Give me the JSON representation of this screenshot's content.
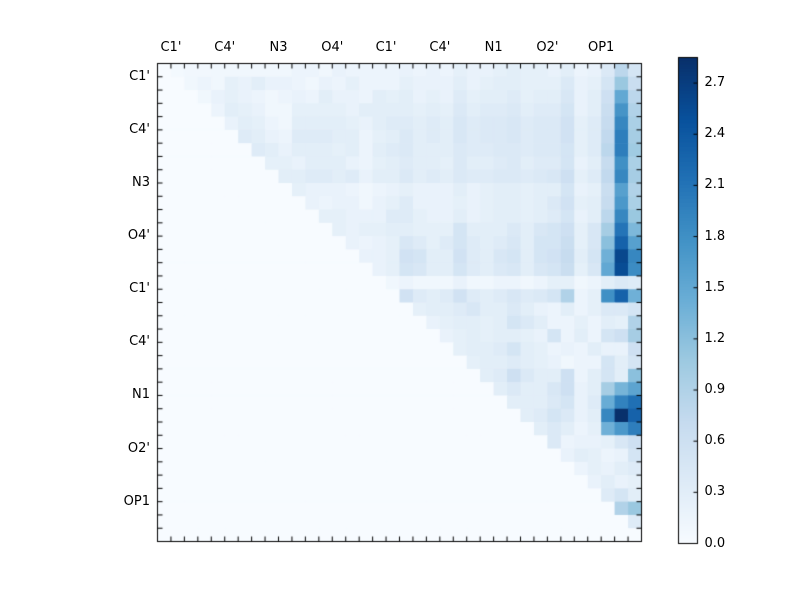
{
  "figure": {
    "background": "#ffffff",
    "frame_color": "#000000"
  },
  "chart_data": {
    "type": "heatmap",
    "title": "",
    "xlabel": "",
    "ylabel": "",
    "x_tick_labels": [
      "C1'",
      "C4'",
      "N3",
      "O4'",
      "C1'",
      "C4'",
      "N1",
      "O2'",
      "OP1"
    ],
    "y_tick_labels": [
      "C1'",
      "C4'",
      "N3",
      "O4'",
      "C1'",
      "C4'",
      "N1",
      "O2'",
      "OP1"
    ],
    "label_cell_positions": [
      1,
      5,
      9,
      13,
      17,
      21,
      25,
      29,
      33
    ],
    "n_cells": 36,
    "grid": false,
    "matrix_shape": "upper-triangular",
    "colormap": "Blues",
    "vmin": 0.0,
    "vmax": 2.85,
    "colorbar": {
      "position": "right",
      "tick_values": [
        0.0,
        0.3,
        0.6,
        0.9,
        1.2,
        1.5,
        1.8,
        2.1,
        2.4,
        2.7
      ],
      "tick_labels": [
        "0.0",
        "0.3",
        "0.6",
        "0.9",
        "1.2",
        "1.5",
        "1.8",
        "2.1",
        "2.4",
        "2.7"
      ]
    },
    "matrix": [
      [
        0,
        0.05,
        0.08,
        0.08,
        0.1,
        0.1,
        0.1,
        0.1,
        0.1,
        0.1,
        0.15,
        0.15,
        0.1,
        0.2,
        0.15,
        0.15,
        0.15,
        0.15,
        0.2,
        0.15,
        0.2,
        0.15,
        0.25,
        0.2,
        0.2,
        0.25,
        0.3,
        0.25,
        0.25,
        0.2,
        0.3,
        0.15,
        0.2,
        0.4,
        0.8,
        0.5
      ],
      [
        0,
        0,
        0.1,
        0.15,
        0.1,
        0.25,
        0.2,
        0.3,
        0.2,
        0.2,
        0.15,
        0.1,
        0.2,
        0.15,
        0.25,
        0.15,
        0.15,
        0.15,
        0.25,
        0.2,
        0.2,
        0.2,
        0.3,
        0.2,
        0.25,
        0.3,
        0.3,
        0.25,
        0.25,
        0.25,
        0.4,
        0.2,
        0.25,
        0.5,
        1.1,
        0.65
      ],
      [
        0,
        0,
        0,
        0.1,
        0.2,
        0.25,
        0.2,
        0.15,
        0.1,
        0.15,
        0.2,
        0.15,
        0.3,
        0.2,
        0.2,
        0.15,
        0.3,
        0.25,
        0.3,
        0.2,
        0.25,
        0.2,
        0.35,
        0.25,
        0.3,
        0.3,
        0.35,
        0.25,
        0.3,
        0.3,
        0.45,
        0.2,
        0.3,
        0.6,
        1.5,
        0.8
      ],
      [
        0,
        0,
        0,
        0,
        0.15,
        0.3,
        0.25,
        0.2,
        0.1,
        0.1,
        0.25,
        0.25,
        0.25,
        0.25,
        0.2,
        0.3,
        0.3,
        0.3,
        0.3,
        0.25,
        0.3,
        0.25,
        0.4,
        0.3,
        0.35,
        0.35,
        0.4,
        0.3,
        0.35,
        0.35,
        0.5,
        0.2,
        0.3,
        0.65,
        1.75,
        0.9
      ],
      [
        0,
        0,
        0,
        0,
        0,
        0.2,
        0.3,
        0.25,
        0.15,
        0.1,
        0.3,
        0.3,
        0.3,
        0.3,
        0.25,
        0.2,
        0.3,
        0.35,
        0.35,
        0.3,
        0.35,
        0.3,
        0.45,
        0.35,
        0.4,
        0.4,
        0.45,
        0.35,
        0.4,
        0.4,
        0.55,
        0.25,
        0.35,
        0.7,
        1.9,
        0.95
      ],
      [
        0,
        0,
        0,
        0,
        0,
        0,
        0.35,
        0.3,
        0.2,
        0.15,
        0.35,
        0.35,
        0.35,
        0.3,
        0.3,
        0.15,
        0.25,
        0.3,
        0.4,
        0.3,
        0.35,
        0.3,
        0.45,
        0.35,
        0.4,
        0.4,
        0.45,
        0.35,
        0.4,
        0.4,
        0.55,
        0.25,
        0.35,
        0.75,
        2.0,
        1.0
      ],
      [
        0,
        0,
        0,
        0,
        0,
        0,
        0,
        0.35,
        0.3,
        0.2,
        0.3,
        0.3,
        0.3,
        0.25,
        0.3,
        0.15,
        0.3,
        0.35,
        0.4,
        0.3,
        0.3,
        0.3,
        0.4,
        0.35,
        0.35,
        0.4,
        0.4,
        0.35,
        0.4,
        0.4,
        0.5,
        0.25,
        0.35,
        0.8,
        2.0,
        1.05
      ],
      [
        0,
        0,
        0,
        0,
        0,
        0,
        0,
        0,
        0.25,
        0.25,
        0.2,
        0.3,
        0.3,
        0.3,
        0.2,
        0.15,
        0.25,
        0.3,
        0.35,
        0.3,
        0.3,
        0.25,
        0.4,
        0.3,
        0.3,
        0.35,
        0.4,
        0.3,
        0.35,
        0.35,
        0.5,
        0.2,
        0.3,
        0.7,
        1.8,
        0.95
      ],
      [
        0,
        0,
        0,
        0,
        0,
        0,
        0,
        0,
        0,
        0.3,
        0.3,
        0.35,
        0.35,
        0.3,
        0.35,
        0.2,
        0.3,
        0.3,
        0.4,
        0.3,
        0.35,
        0.3,
        0.4,
        0.35,
        0.35,
        0.4,
        0.4,
        0.35,
        0.4,
        0.45,
        0.6,
        0.25,
        0.35,
        0.75,
        1.9,
        1.0
      ],
      [
        0,
        0,
        0,
        0,
        0,
        0,
        0,
        0,
        0,
        0,
        0.25,
        0.2,
        0.2,
        0.2,
        0.15,
        0.1,
        0.15,
        0.2,
        0.25,
        0.2,
        0.2,
        0.2,
        0.3,
        0.2,
        0.25,
        0.3,
        0.3,
        0.25,
        0.3,
        0.3,
        0.5,
        0.2,
        0.25,
        0.65,
        1.6,
        0.9
      ],
      [
        0,
        0,
        0,
        0,
        0,
        0,
        0,
        0,
        0,
        0,
        0,
        0.2,
        0.15,
        0.2,
        0.2,
        0.1,
        0.2,
        0.25,
        0.35,
        0.2,
        0.2,
        0.2,
        0.25,
        0.2,
        0.25,
        0.3,
        0.3,
        0.25,
        0.3,
        0.4,
        0.55,
        0.25,
        0.3,
        0.7,
        1.7,
        0.95
      ],
      [
        0,
        0,
        0,
        0,
        0,
        0,
        0,
        0,
        0,
        0,
        0,
        0,
        0.25,
        0.25,
        0.2,
        0.2,
        0.2,
        0.35,
        0.35,
        0.25,
        0.2,
        0.2,
        0.3,
        0.2,
        0.25,
        0.3,
        0.3,
        0.25,
        0.3,
        0.35,
        0.5,
        0.2,
        0.3,
        0.8,
        1.9,
        1.1
      ],
      [
        0,
        0,
        0,
        0,
        0,
        0,
        0,
        0,
        0,
        0,
        0,
        0,
        0,
        0.25,
        0.2,
        0.25,
        0.25,
        0.3,
        0.3,
        0.25,
        0.25,
        0.25,
        0.5,
        0.3,
        0.3,
        0.3,
        0.4,
        0.3,
        0.45,
        0.5,
        0.6,
        0.25,
        0.45,
        1.0,
        2.1,
        1.3
      ],
      [
        0,
        0,
        0,
        0,
        0,
        0,
        0,
        0,
        0,
        0,
        0,
        0,
        0,
        0,
        0.2,
        0.15,
        0.2,
        0.25,
        0.45,
        0.35,
        0.25,
        0.35,
        0.5,
        0.35,
        0.3,
        0.35,
        0.45,
        0.3,
        0.5,
        0.5,
        0.65,
        0.25,
        0.45,
        1.2,
        2.3,
        1.6
      ],
      [
        0,
        0,
        0,
        0,
        0,
        0,
        0,
        0,
        0,
        0,
        0,
        0,
        0,
        0,
        0,
        0.2,
        0.2,
        0.25,
        0.55,
        0.5,
        0.3,
        0.3,
        0.55,
        0.35,
        0.3,
        0.45,
        0.5,
        0.3,
        0.5,
        0.55,
        0.7,
        0.3,
        0.5,
        1.4,
        2.6,
        1.9
      ],
      [
        0,
        0,
        0,
        0,
        0,
        0,
        0,
        0,
        0,
        0,
        0,
        0,
        0,
        0,
        0,
        0,
        0.2,
        0.25,
        0.5,
        0.45,
        0.3,
        0.3,
        0.5,
        0.35,
        0.3,
        0.4,
        0.45,
        0.3,
        0.45,
        0.5,
        0.65,
        0.25,
        0.45,
        1.5,
        2.55,
        1.85
      ],
      [
        0,
        0,
        0,
        0,
        0,
        0,
        0,
        0,
        0,
        0,
        0,
        0,
        0,
        0,
        0,
        0,
        0,
        0.1,
        0.15,
        0.1,
        0.1,
        0.1,
        0.2,
        0.1,
        0.1,
        0.15,
        0.15,
        0.1,
        0.15,
        0.25,
        0.25,
        0.1,
        0.15,
        0.3,
        0.4,
        0.35
      ],
      [
        0,
        0,
        0,
        0,
        0,
        0,
        0,
        0,
        0,
        0,
        0,
        0,
        0,
        0,
        0,
        0,
        0,
        0,
        0.55,
        0.35,
        0.3,
        0.35,
        0.55,
        0.35,
        0.3,
        0.35,
        0.45,
        0.35,
        0.4,
        0.5,
        0.9,
        0.15,
        0.25,
        1.8,
        2.3,
        1.4
      ],
      [
        0,
        0,
        0,
        0,
        0,
        0,
        0,
        0,
        0,
        0,
        0,
        0,
        0,
        0,
        0,
        0,
        0,
        0,
        0,
        0.25,
        0.3,
        0.3,
        0.35,
        0.45,
        0.3,
        0.3,
        0.4,
        0.3,
        0.2,
        0.15,
        0.3,
        0.15,
        0.25,
        0.4,
        0.4,
        0.5
      ],
      [
        0,
        0,
        0,
        0,
        0,
        0,
        0,
        0,
        0,
        0,
        0,
        0,
        0,
        0,
        0,
        0,
        0,
        0,
        0,
        0,
        0.2,
        0.25,
        0.3,
        0.3,
        0.25,
        0.3,
        0.5,
        0.4,
        0.3,
        0.15,
        0.15,
        0.25,
        0.15,
        0.3,
        0.25,
        0.9
      ],
      [
        0,
        0,
        0,
        0,
        0,
        0,
        0,
        0,
        0,
        0,
        0,
        0,
        0,
        0,
        0,
        0,
        0,
        0,
        0,
        0,
        0,
        0.2,
        0.25,
        0.3,
        0.25,
        0.3,
        0.3,
        0.25,
        0.2,
        0.5,
        0.15,
        0.3,
        0.15,
        0.5,
        0.6,
        1.0
      ],
      [
        0,
        0,
        0,
        0,
        0,
        0,
        0,
        0,
        0,
        0,
        0,
        0,
        0,
        0,
        0,
        0,
        0,
        0,
        0,
        0,
        0,
        0,
        0.25,
        0.3,
        0.3,
        0.35,
        0.5,
        0.3,
        0.25,
        0.15,
        0.2,
        0.15,
        0.3,
        0.2,
        0.2,
        0.6
      ],
      [
        0,
        0,
        0,
        0,
        0,
        0,
        0,
        0,
        0,
        0,
        0,
        0,
        0,
        0,
        0,
        0,
        0,
        0,
        0,
        0,
        0,
        0,
        0,
        0.25,
        0.3,
        0.3,
        0.35,
        0.3,
        0.25,
        0.2,
        0.1,
        0.15,
        0.15,
        0.5,
        0.3,
        0.5
      ],
      [
        0,
        0,
        0,
        0,
        0,
        0,
        0,
        0,
        0,
        0,
        0,
        0,
        0,
        0,
        0,
        0,
        0,
        0,
        0,
        0,
        0,
        0,
        0,
        0,
        0.3,
        0.35,
        0.6,
        0.4,
        0.3,
        0.3,
        0.6,
        0.15,
        0.3,
        0.5,
        0.3,
        1.2
      ],
      [
        0,
        0,
        0,
        0,
        0,
        0,
        0,
        0,
        0,
        0,
        0,
        0,
        0,
        0,
        0,
        0,
        0,
        0,
        0,
        0,
        0,
        0,
        0,
        0,
        0,
        0.3,
        0.4,
        0.3,
        0.3,
        0.45,
        0.6,
        0.2,
        0.3,
        1.0,
        1.35,
        1.55
      ],
      [
        0,
        0,
        0,
        0,
        0,
        0,
        0,
        0,
        0,
        0,
        0,
        0,
        0,
        0,
        0,
        0,
        0,
        0,
        0,
        0,
        0,
        0,
        0,
        0,
        0,
        0,
        0.3,
        0.3,
        0.3,
        0.4,
        0.5,
        0.2,
        0.35,
        1.45,
        1.95,
        2.15
      ],
      [
        0,
        0,
        0,
        0,
        0,
        0,
        0,
        0,
        0,
        0,
        0,
        0,
        0,
        0,
        0,
        0,
        0,
        0,
        0,
        0,
        0,
        0,
        0,
        0,
        0,
        0,
        0,
        0.3,
        0.35,
        0.5,
        0.4,
        0.2,
        0.3,
        1.9,
        2.85,
        2.3
      ],
      [
        0,
        0,
        0,
        0,
        0,
        0,
        0,
        0,
        0,
        0,
        0,
        0,
        0,
        0,
        0,
        0,
        0,
        0,
        0,
        0,
        0,
        0,
        0,
        0,
        0,
        0,
        0,
        0,
        0.3,
        0.4,
        0.3,
        0.15,
        0.25,
        1.4,
        1.7,
        2.0
      ],
      [
        0,
        0,
        0,
        0,
        0,
        0,
        0,
        0,
        0,
        0,
        0,
        0,
        0,
        0,
        0,
        0,
        0,
        0,
        0,
        0,
        0,
        0,
        0,
        0,
        0,
        0,
        0,
        0,
        0,
        0.4,
        0.15,
        0.2,
        0.2,
        0.25,
        0.45,
        0.6
      ],
      [
        0,
        0,
        0,
        0,
        0,
        0,
        0,
        0,
        0,
        0,
        0,
        0,
        0,
        0,
        0,
        0,
        0,
        0,
        0,
        0,
        0,
        0,
        0,
        0,
        0,
        0,
        0,
        0,
        0,
        0,
        0.2,
        0.3,
        0.25,
        0.15,
        0.2,
        0.5
      ],
      [
        0,
        0,
        0,
        0,
        0,
        0,
        0,
        0,
        0,
        0,
        0,
        0,
        0,
        0,
        0,
        0,
        0,
        0,
        0,
        0,
        0,
        0,
        0,
        0,
        0,
        0,
        0,
        0,
        0,
        0,
        0,
        0.15,
        0.25,
        0.2,
        0.3,
        0.35
      ],
      [
        0,
        0,
        0,
        0,
        0,
        0,
        0,
        0,
        0,
        0,
        0,
        0,
        0,
        0,
        0,
        0,
        0,
        0,
        0,
        0,
        0,
        0,
        0,
        0,
        0,
        0,
        0,
        0,
        0,
        0,
        0,
        0,
        0.2,
        0.3,
        0.2,
        0.25
      ],
      [
        0,
        0,
        0,
        0,
        0,
        0,
        0,
        0,
        0,
        0,
        0,
        0,
        0,
        0,
        0,
        0,
        0,
        0,
        0,
        0,
        0,
        0,
        0,
        0,
        0,
        0,
        0,
        0,
        0,
        0,
        0,
        0,
        0,
        0.35,
        0.5,
        0.3
      ],
      [
        0,
        0,
        0,
        0,
        0,
        0,
        0,
        0,
        0,
        0,
        0,
        0,
        0,
        0,
        0,
        0,
        0,
        0,
        0,
        0,
        0,
        0,
        0,
        0,
        0,
        0,
        0,
        0,
        0,
        0,
        0,
        0,
        0,
        0,
        0.9,
        1.1
      ],
      [
        0,
        0,
        0,
        0,
        0,
        0,
        0,
        0,
        0,
        0,
        0,
        0,
        0,
        0,
        0,
        0,
        0,
        0,
        0,
        0,
        0,
        0,
        0,
        0,
        0,
        0,
        0,
        0,
        0,
        0,
        0,
        0,
        0,
        0,
        0,
        0.35
      ],
      [
        0,
        0,
        0,
        0,
        0,
        0,
        0,
        0,
        0,
        0,
        0,
        0,
        0,
        0,
        0,
        0,
        0,
        0,
        0,
        0,
        0,
        0,
        0,
        0,
        0,
        0,
        0,
        0,
        0,
        0,
        0,
        0,
        0,
        0,
        0,
        0
      ]
    ]
  }
}
